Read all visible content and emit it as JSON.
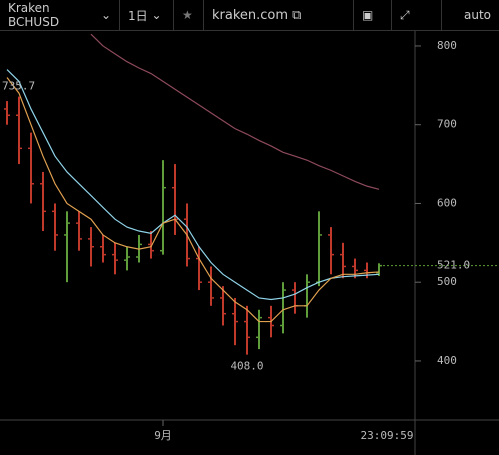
{
  "toolbar": {
    "symbol": "Kraken BCHUSD",
    "interval": "1日",
    "site": "kraken.com",
    "scale": "auto"
  },
  "chart_data": {
    "type": "ohlc",
    "categories": [
      null,
      null,
      null,
      null,
      null,
      null,
      null,
      null,
      null,
      null,
      null,
      null,
      null,
      "9月",
      null,
      null,
      null,
      null,
      null,
      null,
      null,
      null,
      null,
      null,
      null,
      null,
      null,
      null,
      null,
      null,
      null,
      null
    ],
    "open": [
      720,
      712,
      670,
      625,
      590,
      560,
      575,
      555,
      545,
      535,
      528,
      532,
      548,
      540,
      620,
      580,
      530,
      500,
      480,
      460,
      450,
      430,
      455,
      445,
      490,
      470,
      500,
      560,
      535,
      520,
      515,
      512
    ],
    "high": [
      730,
      735.7,
      690,
      640,
      600,
      590,
      590,
      570,
      560,
      550,
      545,
      560,
      565,
      655,
      650,
      600,
      545,
      520,
      495,
      480,
      470,
      465,
      470,
      500,
      500,
      510,
      590,
      570,
      550,
      530,
      525,
      524
    ],
    "low": [
      700,
      650,
      600,
      565,
      540,
      500,
      540,
      520,
      525,
      510,
      515,
      525,
      530,
      535,
      560,
      520,
      490,
      470,
      445,
      420,
      408,
      415,
      430,
      435,
      460,
      455,
      495,
      510,
      505,
      505,
      505,
      508
    ],
    "close": [
      712,
      670,
      625,
      590,
      560,
      575,
      555,
      545,
      535,
      528,
      532,
      548,
      540,
      620,
      580,
      530,
      500,
      480,
      460,
      450,
      430,
      455,
      445,
      490,
      470,
      500,
      560,
      535,
      520,
      515,
      512,
      521
    ],
    "up_color": "#5f9e3a",
    "down_color": "#c0392b",
    "series": [
      {
        "color": "#8fd3e8",
        "values": [
          770,
          755,
          720,
          690,
          660,
          640,
          625,
          610,
          595,
          580,
          570,
          565,
          562,
          575,
          585,
          570,
          545,
          525,
          510,
          500,
          490,
          480,
          478,
          480,
          485,
          493,
          500,
          505,
          507,
          508,
          509,
          510
        ]
      },
      {
        "color": "#e0a050",
        "values": [
          760,
          740,
          700,
          660,
          625,
          600,
          590,
          580,
          560,
          550,
          545,
          542,
          545,
          575,
          580,
          560,
          530,
          505,
          490,
          475,
          465,
          450,
          450,
          465,
          470,
          470,
          490,
          505,
          510,
          510,
          512,
          513
        ]
      },
      {
        "color": "#8e4a5c",
        "values": [
          null,
          null,
          null,
          null,
          null,
          null,
          null,
          815,
          800,
          790,
          780,
          772,
          765,
          755,
          745,
          735,
          725,
          715,
          705,
          695,
          688,
          680,
          673,
          665,
          660,
          655,
          648,
          642,
          635,
          628,
          622,
          618
        ]
      }
    ],
    "annotations": [
      "735.7",
      "408.0"
    ],
    "last_price_label": "521.0",
    "time_label": "23:09:59",
    "ylim": [
      325,
      819
    ],
    "yticks": [
      400,
      500,
      600,
      700,
      800
    ]
  }
}
